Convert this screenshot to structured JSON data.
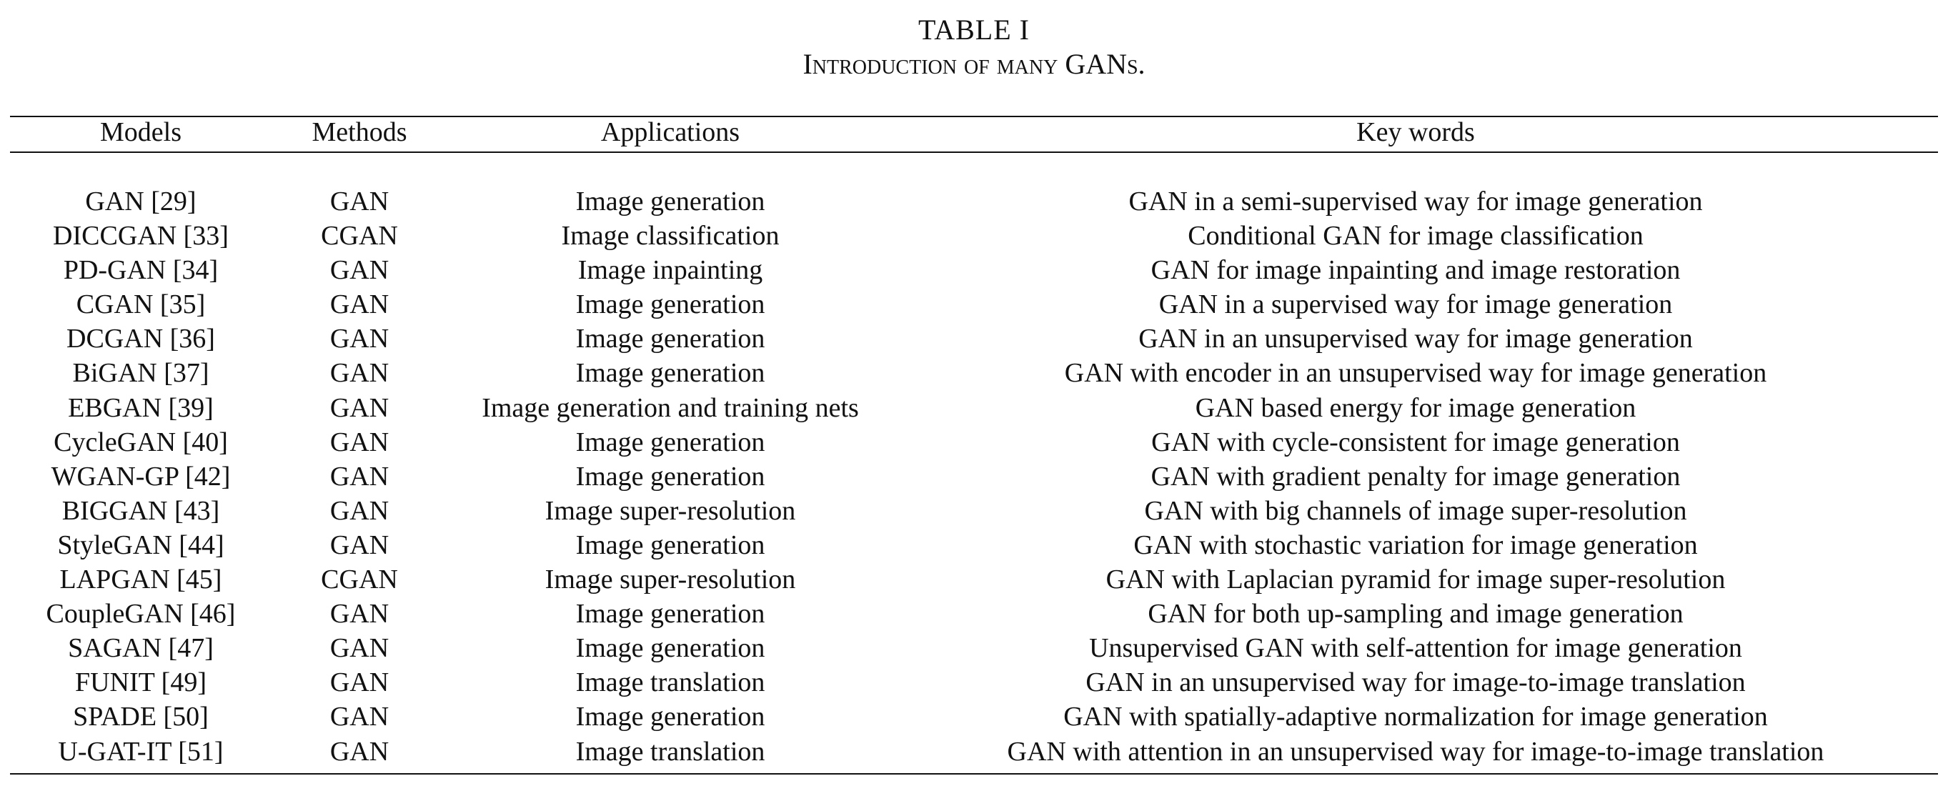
{
  "caption": {
    "label": "TABLE I",
    "title": "Introduction of many GANs."
  },
  "table": {
    "headers": [
      "Models",
      "Methods",
      "Applications",
      "Key words"
    ],
    "rows": [
      [
        "GAN [29]",
        "GAN",
        "Image generation",
        "GAN in a semi-supervised way for image generation"
      ],
      [
        "DICCGAN [33]",
        "CGAN",
        "Image classification",
        "Conditional GAN for image classification"
      ],
      [
        "PD-GAN [34]",
        "GAN",
        "Image inpainting",
        "GAN for image inpainting and image restoration"
      ],
      [
        "CGAN [35]",
        "GAN",
        "Image generation",
        "GAN in a supervised way for image generation"
      ],
      [
        "DCGAN [36]",
        "GAN",
        "Image generation",
        "GAN in an unsupervised way for image generation"
      ],
      [
        "BiGAN [37]",
        "GAN",
        "Image generation",
        "GAN with encoder in an unsupervised way for image generation"
      ],
      [
        "EBGAN [39]",
        "GAN",
        "Image generation and training nets",
        "GAN based energy for image generation"
      ],
      [
        "CycleGAN [40]",
        "GAN",
        "Image generation",
        "GAN with cycle-consistent for image generation"
      ],
      [
        "WGAN-GP [42]",
        "GAN",
        "Image generation",
        "GAN with gradient penalty for image generation"
      ],
      [
        "BIGGAN [43]",
        "GAN",
        "Image super-resolution",
        "GAN with big channels of image super-resolution"
      ],
      [
        "StyleGAN [44]",
        "GAN",
        "Image generation",
        "GAN with stochastic variation for image generation"
      ],
      [
        "LAPGAN [45]",
        "CGAN",
        "Image super-resolution",
        "GAN with Laplacian pyramid for image super-resolution"
      ],
      [
        "CoupleGAN [46]",
        "GAN",
        "Image generation",
        "GAN for both up-sampling and image generation"
      ],
      [
        "SAGAN [47]",
        "GAN",
        "Image generation",
        "Unsupervised GAN with self-attention for image generation"
      ],
      [
        "FUNIT [49]",
        "GAN",
        "Image translation",
        "GAN in an unsupervised way for image-to-image translation"
      ],
      [
        "SPADE [50]",
        "GAN",
        "Image generation",
        "GAN with spatially-adaptive normalization for image generation"
      ],
      [
        "U-GAT-IT [51]",
        "GAN",
        "Image translation",
        "GAN with attention in an unsupervised way for image-to-image translation"
      ]
    ]
  }
}
